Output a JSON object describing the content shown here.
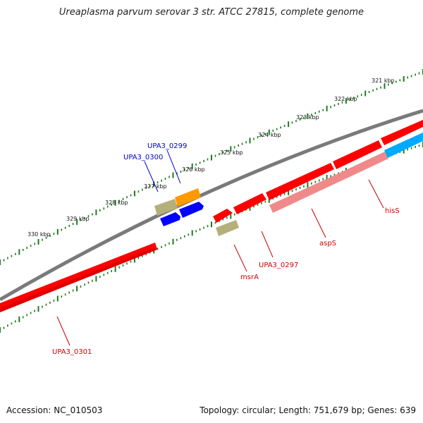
{
  "title": "Ureaplasma parvum serovar 3 str. ATCC 27815, complete genome",
  "footer": {
    "accession": "Accession: NC_010503",
    "summary": "Topology: circular; Length: 751,679 bp; Genes: 639"
  },
  "colors": {
    "backbone": "#7a7a7a",
    "tick": "#1f7a1f",
    "red_gene": "#ff0000",
    "pink_gene": "#f08a8a",
    "blue_gene": "#0000ff",
    "cyan_gene": "#00aaff",
    "olive_gene": "#b5b07a",
    "orange_gene": "#ff9900",
    "label_red": "#cc0000",
    "label_blue": "#0000cc"
  },
  "kbp_ticks": [
    "321 kbp",
    "322 kbp",
    "323 kbp",
    "324 kbp",
    "325 kbp",
    "326 kbp",
    "327 kbp",
    "328 kbp",
    "329 kbp",
    "330 kbp"
  ],
  "genes": [
    {
      "name": "UPA3_0301",
      "color": "red_gene"
    },
    {
      "name": "UPA3_0300",
      "color": "blue_gene"
    },
    {
      "name": "UPA3_0299",
      "color": "blue_gene"
    },
    {
      "name": "msrA",
      "color": "red_gene"
    },
    {
      "name": "UPA3_0297",
      "color": "red_gene"
    },
    {
      "name": "aspS",
      "color": "pink_gene"
    },
    {
      "name": "hisS",
      "color": "red_gene"
    }
  ]
}
